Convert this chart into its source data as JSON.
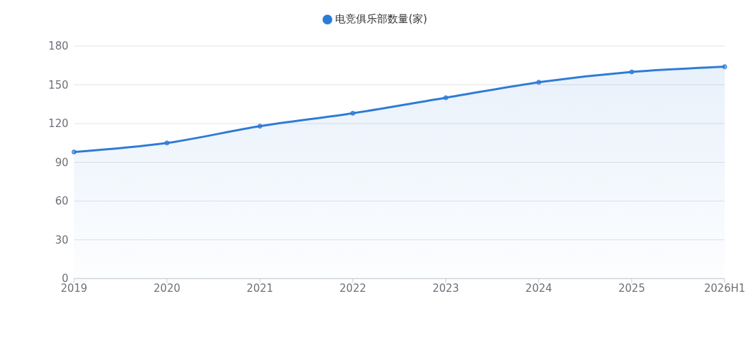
{
  "chart_data": {
    "type": "area",
    "categories": [
      "2019",
      "2020",
      "2021",
      "2022",
      "2023",
      "2024",
      "2025",
      "2026H1"
    ],
    "series": [
      {
        "name": "电竞俱乐部数量(家)",
        "color": "#2e7bd6",
        "values": [
          98,
          105,
          118,
          128,
          140,
          152,
          160,
          164
        ]
      }
    ],
    "ylim": [
      0,
      180
    ],
    "yticks": [
      0,
      30,
      60,
      90,
      120,
      150,
      180
    ],
    "grid": "y",
    "legend": "top",
    "marker": "circle",
    "line_style": "solid"
  }
}
